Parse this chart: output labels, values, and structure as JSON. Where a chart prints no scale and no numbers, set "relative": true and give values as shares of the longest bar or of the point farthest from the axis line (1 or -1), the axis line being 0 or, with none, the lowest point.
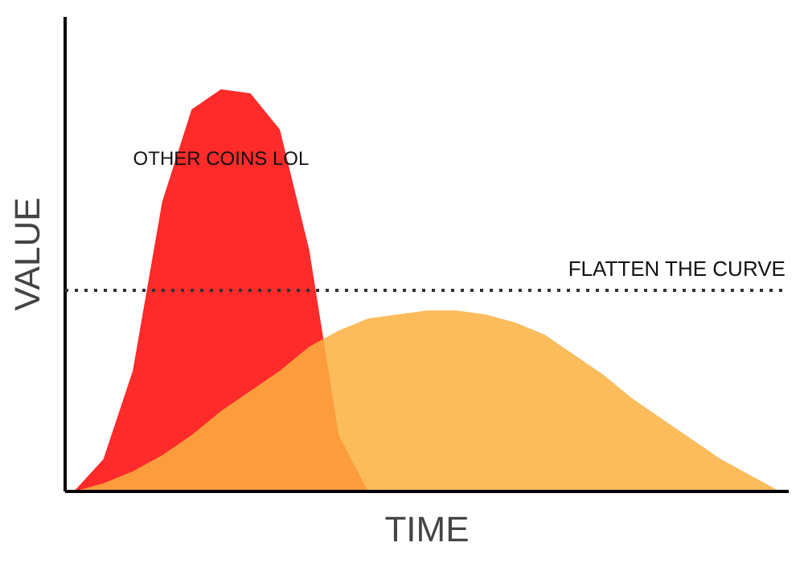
{
  "chart_data": {
    "type": "area",
    "relative": true,
    "xlabel": "TIME",
    "ylabel": "VALUE",
    "grid": false,
    "categories": [
      null,
      null,
      null,
      null,
      null,
      null,
      null,
      null,
      null,
      null,
      null,
      null,
      null,
      null,
      null,
      null,
      null,
      null,
      null,
      null,
      null,
      null,
      null,
      null,
      null
    ],
    "series": [
      {
        "name": "OTHER COINS LOL",
        "color": "#ff2a2a",
        "values": [
          0,
          0.08,
          0.3,
          0.72,
          0.95,
          1.0,
          0.99,
          0.9,
          0.6,
          0.14,
          0,
          0,
          0,
          0,
          0,
          0,
          0,
          0,
          0,
          0,
          0,
          0,
          0,
          0,
          0
        ]
      },
      {
        "color": "#fbb040",
        "values": [
          0,
          0.02,
          0.05,
          0.09,
          0.14,
          0.2,
          0.25,
          0.3,
          0.36,
          0.4,
          0.43,
          0.44,
          0.45,
          0.45,
          0.44,
          0.42,
          0.39,
          0.34,
          0.29,
          0.23,
          0.18,
          0.13,
          0.08,
          0.04,
          0
        ]
      }
    ],
    "ref_lines": [
      {
        "axis": "y",
        "value": 0.5,
        "label": "FLATTEN THE CURVE",
        "color": "#333333",
        "line_style": "dotted"
      }
    ]
  }
}
